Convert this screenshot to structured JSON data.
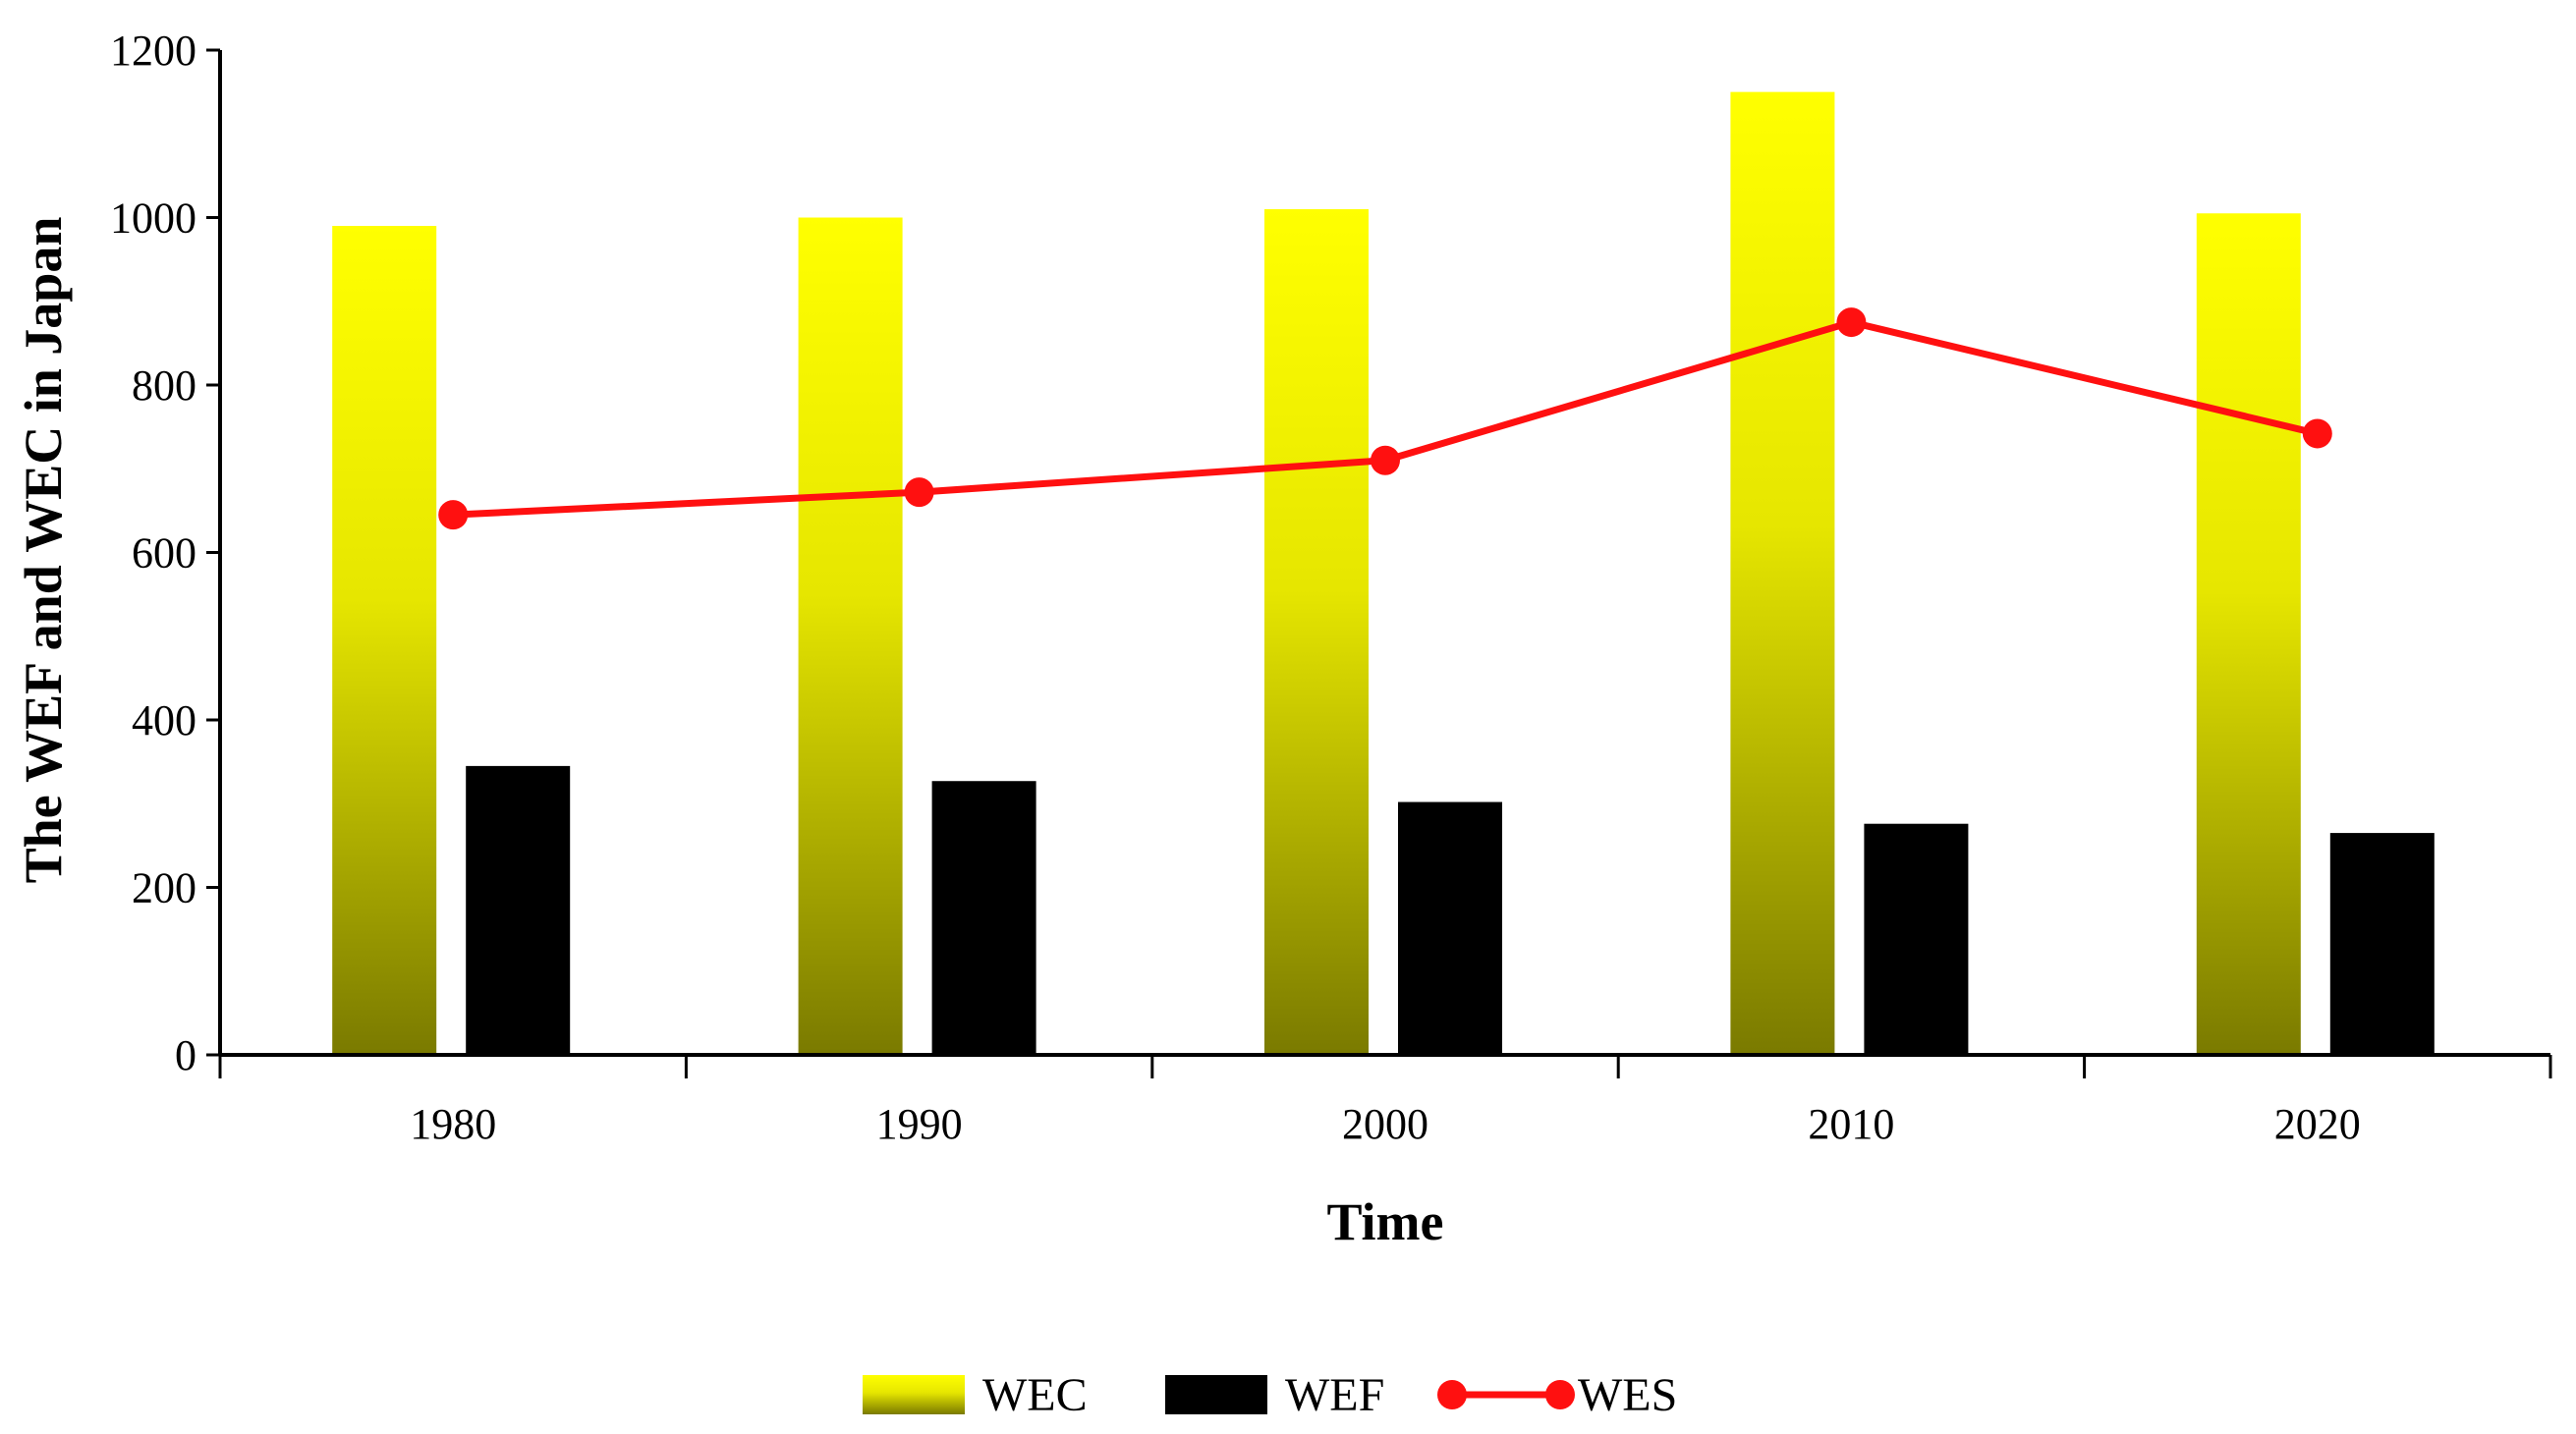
{
  "chart_data": {
    "type": "bar",
    "title": "",
    "xlabel": "Time",
    "ylabel": "The WEF and WEC in Japan",
    "categories": [
      "1980",
      "1990",
      "2000",
      "2010",
      "2020"
    ],
    "ylim": [
      0,
      1200
    ],
    "yticks": [
      "0",
      "200",
      "400",
      "600",
      "800",
      "1000",
      "1200"
    ],
    "grid": false,
    "legend_position": "bottom",
    "series": [
      {
        "name": "WEC",
        "type": "bar",
        "color": "#ffff00",
        "values": [
          990,
          1000,
          1010,
          1150,
          1005
        ]
      },
      {
        "name": "WEF",
        "type": "bar",
        "color": "#000000",
        "values": [
          345,
          327,
          302,
          276,
          265
        ]
      },
      {
        "name": "WES",
        "type": "line",
        "color": "#ff1010",
        "values": [
          645,
          672,
          710,
          875,
          742
        ]
      }
    ]
  }
}
